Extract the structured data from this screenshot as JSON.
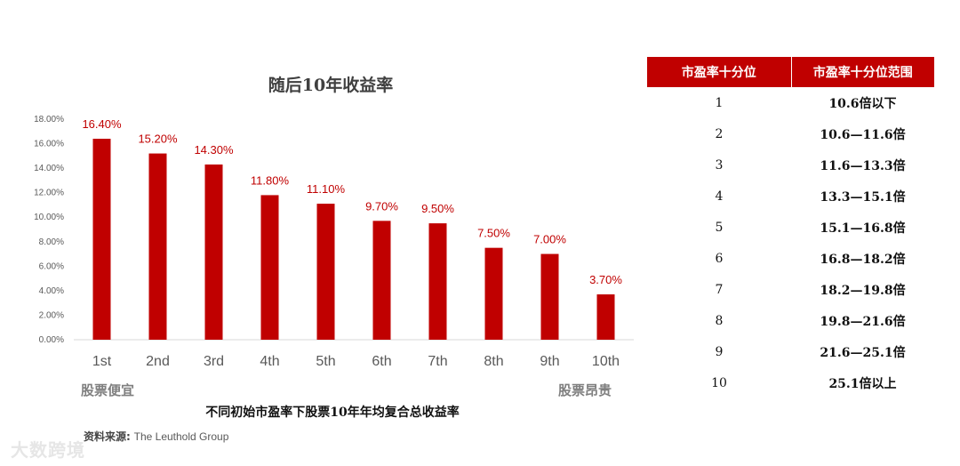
{
  "chart_data": {
    "type": "bar",
    "title": "随后10年收益率",
    "categories": [
      "1st",
      "2nd",
      "3rd",
      "4th",
      "5th",
      "6th",
      "7th",
      "8th",
      "9th",
      "10th"
    ],
    "values": [
      16.4,
      15.2,
      14.3,
      11.8,
      11.1,
      9.7,
      9.5,
      7.5,
      7.0,
      3.7
    ],
    "data_labels": [
      "16.40%",
      "15.20%",
      "14.30%",
      "11.80%",
      "11.10%",
      "9.70%",
      "9.50%",
      "7.50%",
      "7.00%",
      "3.70%"
    ],
    "y_ticks": [
      "0.00%",
      "2.00%",
      "4.00%",
      "6.00%",
      "8.00%",
      "10.00%",
      "12.00%",
      "14.00%",
      "16.00%",
      "18.00%"
    ],
    "ylim": [
      0,
      18
    ],
    "grid": false,
    "legend": "none",
    "bar_color": "#c00000"
  },
  "labels": {
    "left": "股票便宜",
    "right": "股票昂贵"
  },
  "caption": "不同初始市盈率下股票10年年均复合总收益率",
  "source": {
    "label": "资料来源:",
    "value": "The Leuthold Group"
  },
  "watermark": "大数跨境",
  "table": {
    "headers": [
      "市盈率十分位",
      "市盈率十分位范围"
    ],
    "rows": [
      [
        "1",
        "10.6倍以下"
      ],
      [
        "2",
        "10.6—11.6倍"
      ],
      [
        "3",
        "11.6—13.3倍"
      ],
      [
        "4",
        "13.3—15.1倍"
      ],
      [
        "5",
        "15.1—16.8倍"
      ],
      [
        "6",
        "16.8—18.2倍"
      ],
      [
        "7",
        "18.2—19.8倍"
      ],
      [
        "8",
        "19.8—21.6倍"
      ],
      [
        "9",
        "21.6—25.1倍"
      ],
      [
        "10",
        "25.1倍以上"
      ]
    ],
    "header_color": "#c00000"
  }
}
